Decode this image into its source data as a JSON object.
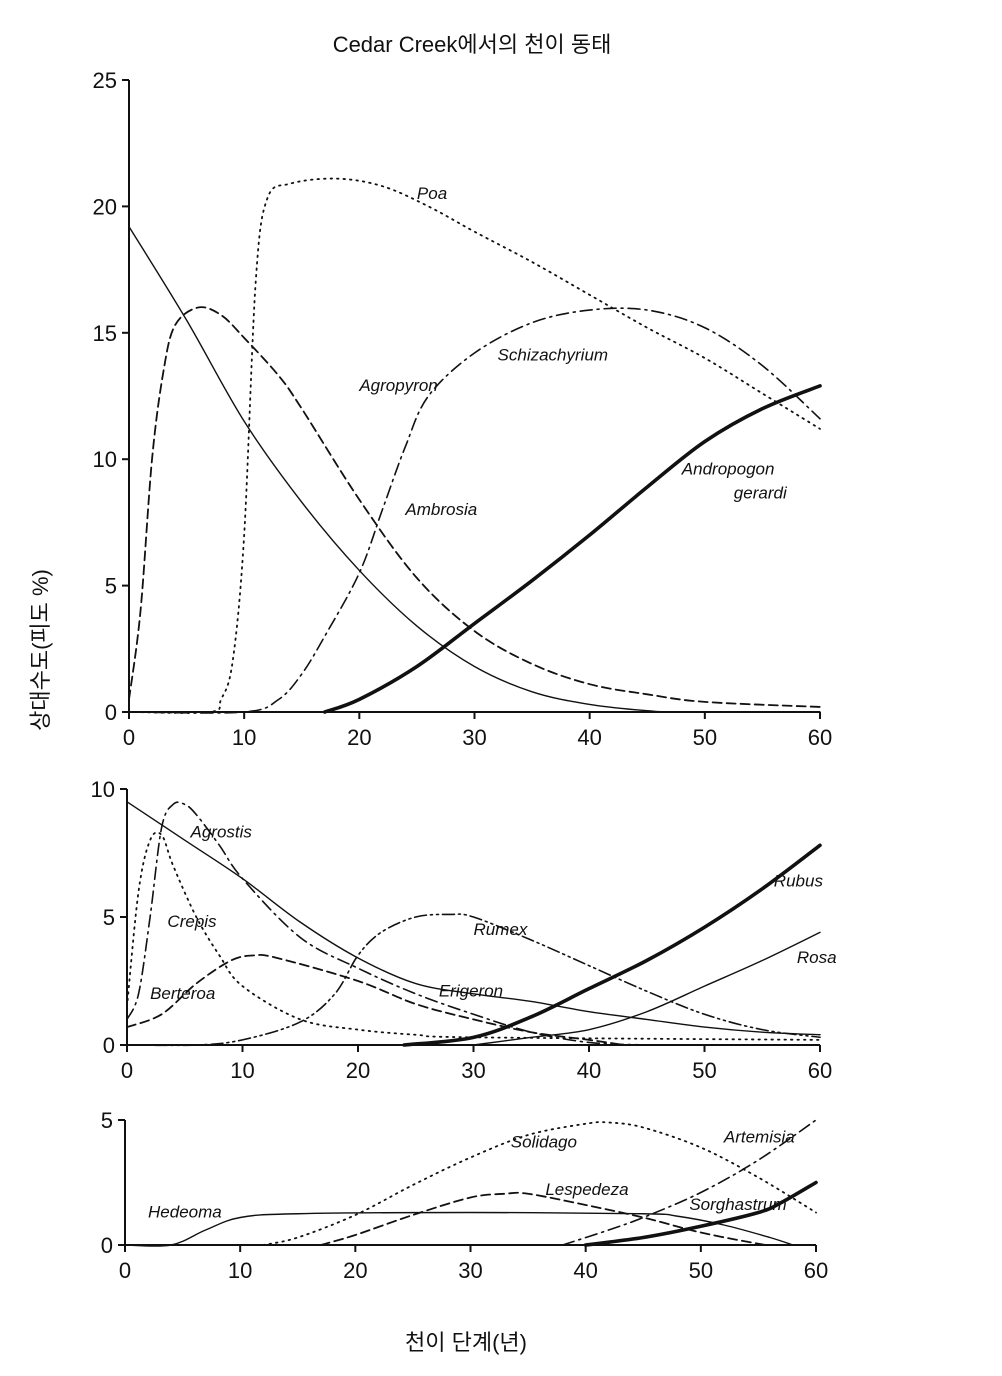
{
  "chart_data": {
    "type": "line",
    "title": "Cedar Creek에서의 천이 동태",
    "xlabel": "천이 단계(년)",
    "ylabel": "상대수도(피도 %)",
    "grid": false,
    "panels": [
      {
        "xlim": [
          0,
          60
        ],
        "ylim": [
          0,
          25
        ],
        "xticks": [
          "0",
          "10",
          "20",
          "30",
          "40",
          "50",
          "60"
        ],
        "yticks": [
          "0",
          "5",
          "10",
          "15",
          "20",
          "25"
        ],
        "series": [
          {
            "name": "Ambrosia",
            "style": "solid",
            "x": [
              0,
              5,
              10,
              15,
              20,
              25,
              30,
              35,
              40,
              45,
              48,
              60
            ],
            "y": [
              19.2,
              15.5,
              11.5,
              8.3,
              5.6,
              3.4,
              1.8,
              0.8,
              0.3,
              0.05,
              0,
              0
            ]
          },
          {
            "name": "Agropyron",
            "style": "dashed",
            "x": [
              0,
              1,
              2,
              3,
              4,
              6,
              8,
              10,
              13,
              15,
              20,
              25,
              30,
              35,
              40,
              45,
              50,
              60
            ],
            "y": [
              0.5,
              4,
              10,
              13.5,
              15.3,
              16,
              15.7,
              14.8,
              13.3,
              12,
              8.4,
              5.3,
              3.2,
              1.9,
              1.1,
              0.7,
              0.4,
              0.2
            ]
          },
          {
            "name": "Poa",
            "style": "dotted",
            "x": [
              0,
              7,
              8,
              9,
              10,
              11,
              12,
              14,
              18,
              22,
              26,
              30,
              35,
              40,
              45,
              50,
              55,
              60
            ],
            "y": [
              0,
              0,
              0.5,
              2,
              7,
              17,
              20.3,
              20.9,
              21.1,
              20.8,
              20,
              19,
              17.8,
              16.5,
              15.2,
              14,
              12.6,
              11.2
            ]
          },
          {
            "name": "Schizachyrium",
            "style": "dashdot",
            "x": [
              0,
              10,
              13,
              15,
              17,
              20,
              22,
              24,
              26,
              30,
              35,
              40,
              45,
              50,
              55,
              60
            ],
            "y": [
              0,
              0,
              0.5,
              1.5,
              3,
              5.5,
              8,
              10.5,
              12.5,
              14.2,
              15.4,
              15.9,
              15.9,
              15.2,
              13.7,
              11.6
            ]
          },
          {
            "name": "Andropogon gerardi",
            "label_lines": [
              "Andropogon",
              "gerardi"
            ],
            "style": "thick",
            "x": [
              17,
              20,
              25,
              30,
              35,
              40,
              45,
              50,
              55,
              60
            ],
            "y": [
              0,
              0.5,
              1.8,
              3.5,
              5.2,
              7,
              8.9,
              10.7,
              12,
              12.9
            ]
          }
        ]
      },
      {
        "xlim": [
          0,
          60
        ],
        "ylim": [
          0,
          10
        ],
        "xticks": [
          "0",
          "10",
          "20",
          "30",
          "40",
          "50",
          "60"
        ],
        "yticks": [
          "0",
          "5",
          "10"
        ],
        "series": [
          {
            "name": "Erigeron",
            "style": "solid",
            "x": [
              0,
              5,
              10,
              15,
              20,
              25,
              30,
              35,
              40,
              45,
              50,
              55,
              60
            ],
            "y": [
              9.5,
              8,
              6.5,
              4.8,
              3.4,
              2.4,
              2,
              1.7,
              1.3,
              1,
              0.7,
              0.5,
              0.4
            ]
          },
          {
            "name": "Agrostis",
            "style": "dashdot",
            "x": [
              0,
              1,
              2,
              3,
              4,
              5,
              6,
              8,
              10,
              15,
              20,
              25,
              30,
              35,
              40,
              45
            ],
            "y": [
              1,
              2,
              5,
              8.5,
              9.4,
              9.4,
              9,
              7.8,
              6.5,
              4.2,
              3,
              2,
              1.2,
              0.5,
              0.1,
              0
            ]
          },
          {
            "name": "Crepis",
            "style": "dotted",
            "x": [
              0,
              1,
              2,
              3,
              4,
              6,
              8,
              10,
              15,
              20,
              25,
              30,
              60
            ],
            "y": [
              1.5,
              6,
              8,
              8.2,
              7,
              5,
              3.5,
              2.3,
              1,
              0.6,
              0.4,
              0.3,
              0.2
            ]
          },
          {
            "name": "Berteroa",
            "style": "dashed",
            "x": [
              0,
              3,
              6,
              9,
              11,
              13,
              20,
              25,
              30,
              35,
              40,
              43
            ],
            "y": [
              0.7,
              1.2,
              2.4,
              3.3,
              3.5,
              3.4,
              2.5,
              1.6,
              1,
              0.5,
              0.2,
              0
            ]
          },
          {
            "name": "Rumex",
            "style": "dashdotdot",
            "x": [
              0,
              6,
              10,
              15,
              18,
              20,
              22,
              25,
              28,
              30,
              35,
              40,
              45,
              50,
              55,
              60
            ],
            "y": [
              0,
              0,
              0.2,
              0.9,
              2,
              3.5,
              4.4,
              5,
              5.1,
              5,
              4.1,
              3.1,
              2.1,
              1.2,
              0.6,
              0.3
            ]
          },
          {
            "name": "Rubus",
            "style": "thick",
            "x": [
              24,
              30,
              35,
              40,
              45,
              50,
              55,
              60
            ],
            "y": [
              0,
              0.3,
              1.1,
              2.2,
              3.3,
              4.6,
              6.1,
              7.8
            ]
          },
          {
            "name": "Rosa",
            "style": "solid",
            "x": [
              30,
              35,
              40,
              45,
              50,
              55,
              60
            ],
            "y": [
              0,
              0.3,
              0.6,
              1.3,
              2.3,
              3.3,
              4.4
            ]
          }
        ]
      },
      {
        "xlim": [
          0,
          60
        ],
        "ylim": [
          0,
          5
        ],
        "xticks": [
          "0",
          "10",
          "20",
          "30",
          "40",
          "50",
          "60"
        ],
        "yticks": [
          "0",
          "5"
        ],
        "series": [
          {
            "name": "Hedeoma",
            "style": "solid",
            "x": [
              0,
              4,
              7,
              10,
              15,
              30,
              45,
              48,
              52,
              56,
              58
            ],
            "y": [
              0,
              0,
              0.6,
              1.1,
              1.25,
              1.3,
              1.25,
              1.15,
              0.8,
              0.3,
              0
            ]
          },
          {
            "name": "Solidago",
            "style": "dotted",
            "x": [
              12,
              15,
              20,
              25,
              30,
              35,
              40,
              42,
              45,
              50,
              55,
              60
            ],
            "y": [
              0,
              0.3,
              1.2,
              2.4,
              3.5,
              4.4,
              4.85,
              4.9,
              4.7,
              3.9,
              2.7,
              1.3
            ]
          },
          {
            "name": "Lespedeza",
            "style": "dashed",
            "x": [
              17,
              20,
              25,
              30,
              33,
              35,
              40,
              45,
              50,
              55,
              56
            ],
            "y": [
              0,
              0.4,
              1.2,
              1.9,
              2.05,
              2.05,
              1.6,
              1.1,
              0.5,
              0.05,
              0
            ]
          },
          {
            "name": "Artemisia",
            "style": "dashdot",
            "x": [
              38,
              42,
              45,
              50,
              55,
              60
            ],
            "y": [
              0,
              0.6,
              1.1,
              2.1,
              3.4,
              5
            ]
          },
          {
            "name": "Sorghastrum",
            "style": "thick",
            "x": [
              40,
              45,
              50,
              55,
              57,
              60
            ],
            "y": [
              0,
              0.3,
              0.75,
              1.3,
              1.7,
              2.5
            ]
          }
        ]
      }
    ]
  }
}
